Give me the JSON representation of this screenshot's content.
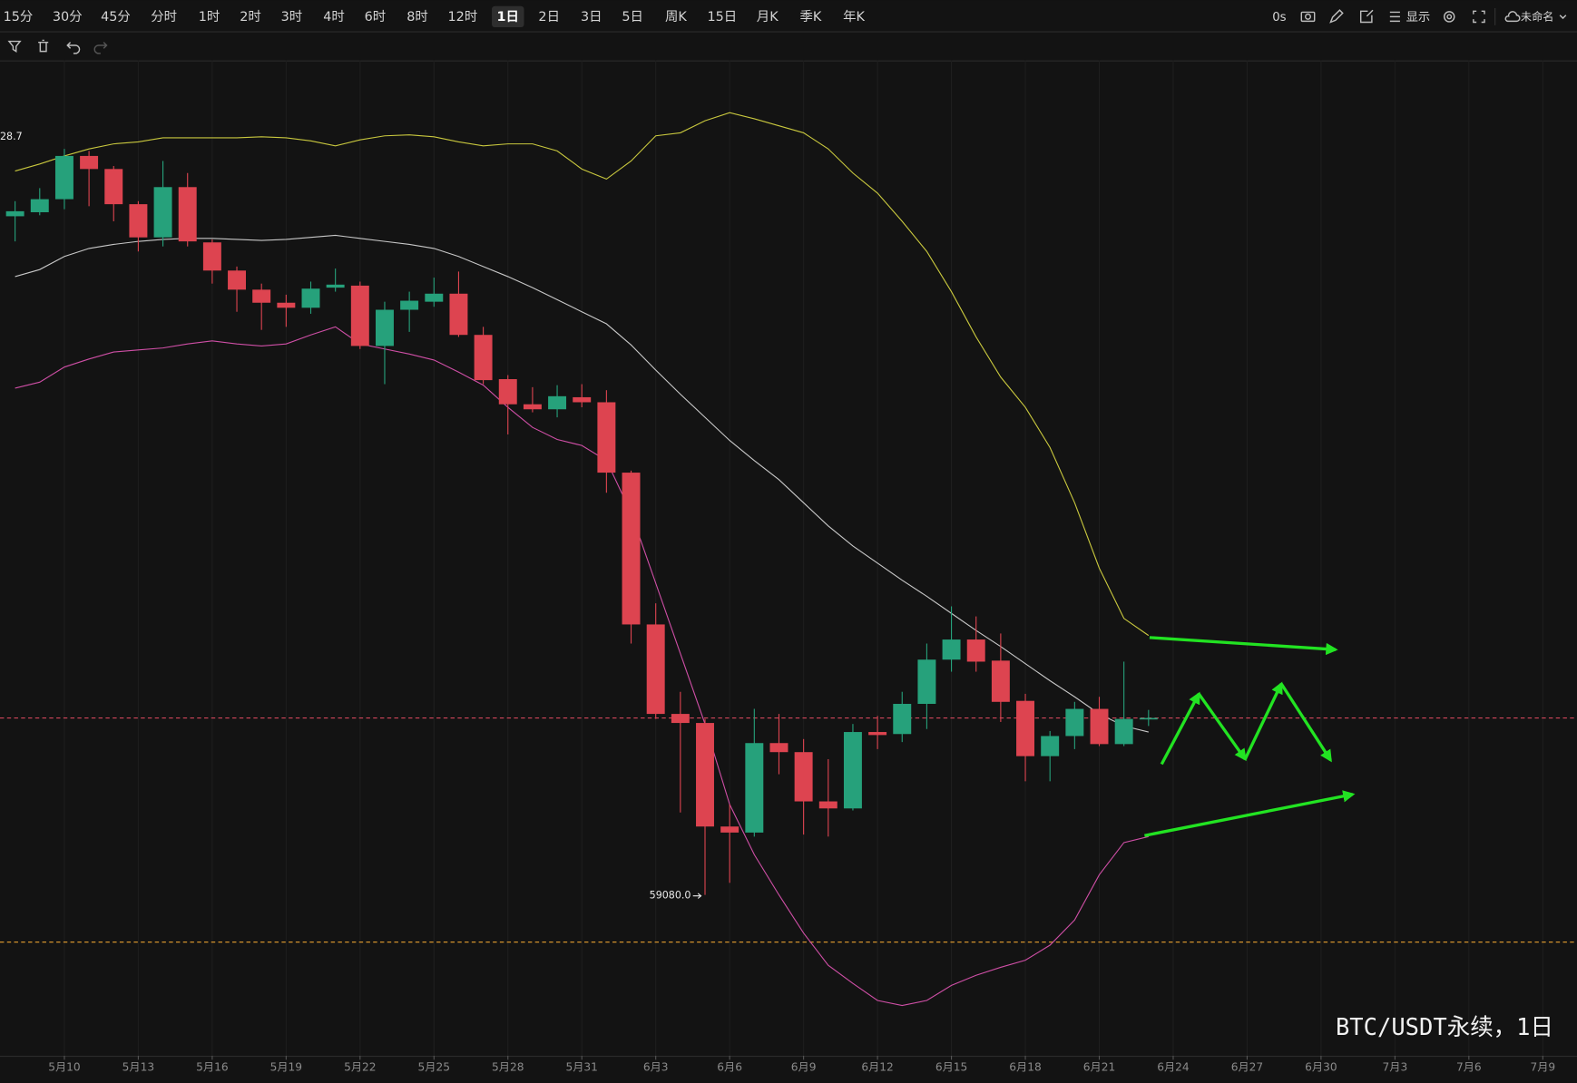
{
  "toolbar": {
    "intervals": [
      "15分",
      "30分",
      "45分",
      "分时",
      "1时",
      "2时",
      "3时",
      "4时",
      "6时",
      "8时",
      "12时",
      "1日",
      "2日",
      "3日",
      "5日",
      "周K",
      "15日",
      "月K",
      "季K",
      "年K"
    ],
    "active_index": 11,
    "right": [
      "0s",
      "显示",
      "未命名"
    ]
  },
  "chart_data": {
    "type": "candlestick",
    "categories": [
      null,
      null,
      "5月10",
      null,
      null,
      "5月13",
      null,
      null,
      "5月16",
      null,
      null,
      "5月19",
      null,
      null,
      "5月22",
      null,
      null,
      "5月25",
      null,
      null,
      "5月28",
      null,
      null,
      "5月31",
      null,
      null,
      "6月3",
      null,
      null,
      "6月6",
      null,
      null,
      "6月9",
      null,
      null,
      "6月12",
      null,
      null,
      "6月15",
      null,
      null,
      "6月18",
      null,
      null,
      "6月21",
      null,
      null,
      "6月24",
      null,
      null,
      "6月27",
      null,
      null,
      "6月30",
      null,
      null,
      "7月3",
      null,
      null,
      "7月6",
      null,
      null,
      "7月9"
    ],
    "open": [
      72580,
      72660,
      72920,
      73780,
      73520,
      72820,
      72160,
      73160,
      72060,
      71500,
      71120,
      70860,
      70760,
      71160,
      71200,
      70000,
      70720,
      70880,
      71040,
      70220,
      69340,
      68840,
      68740,
      68980,
      68880,
      67480,
      64460,
      62680,
      62500,
      60440,
      60320,
      62100,
      61920,
      60940,
      60800,
      62320,
      62280,
      62880,
      63760,
      64160,
      63740,
      62940,
      61840,
      62240,
      62780,
      62080,
      62600,
      null,
      null,
      null,
      null,
      null,
      null,
      null,
      null,
      null,
      null,
      null,
      null,
      null,
      null,
      null,
      null
    ],
    "high": [
      72880,
      73140,
      73920,
      73880,
      73580,
      72880,
      73680,
      73440,
      72120,
      71580,
      71240,
      71020,
      71280,
      71540,
      71280,
      70880,
      71080,
      71360,
      71480,
      70380,
      69420,
      69180,
      69220,
      69240,
      69120,
      67520,
      64880,
      63120,
      62580,
      60880,
      62780,
      62680,
      62180,
      61780,
      62480,
      62640,
      63120,
      64080,
      64820,
      64620,
      64280,
      63080,
      62340,
      62920,
      63020,
      63720,
      62760,
      null,
      null,
      null,
      null,
      null,
      null,
      null,
      null,
      null,
      null,
      null,
      null,
      null,
      null,
      null,
      null
    ],
    "low": [
      72080,
      72600,
      72720,
      72780,
      72480,
      71880,
      71980,
      71980,
      71240,
      70680,
      70320,
      70380,
      70640,
      71080,
      69940,
      69240,
      70280,
      70780,
      70180,
      69240,
      68240,
      68680,
      68580,
      68780,
      67080,
      64080,
      62580,
      60720,
      59080,
      59320,
      60240,
      61480,
      60280,
      60240,
      60760,
      61980,
      62120,
      62380,
      63520,
      63520,
      62520,
      61340,
      61340,
      61980,
      62040,
      62040,
      62440,
      null,
      null,
      null,
      null,
      null,
      null,
      null,
      null,
      null,
      null,
      null,
      null,
      null,
      null,
      null,
      null
    ],
    "close": [
      72680,
      72920,
      73780,
      73520,
      72820,
      72160,
      73160,
      72080,
      71500,
      71120,
      70860,
      70760,
      71140,
      71220,
      70000,
      70720,
      70900,
      71040,
      70220,
      69320,
      68840,
      68740,
      69000,
      68880,
      67480,
      64460,
      62680,
      62500,
      60440,
      60320,
      62100,
      61920,
      60940,
      60800,
      62320,
      62260,
      62880,
      63760,
      64160,
      63720,
      62920,
      61840,
      62240,
      62780,
      62080,
      62580,
      62600,
      null,
      null,
      null,
      null,
      null,
      null,
      null,
      null,
      null,
      null,
      null,
      null,
      null,
      null,
      null,
      null
    ],
    "up_color": "#26a17b",
    "down_color": "#dd4450",
    "bands": [
      {
        "color": "#c9c83e",
        "values": [
          73480,
          73620,
          73780,
          73920,
          74020,
          74060,
          74140,
          74140,
          74140,
          74140,
          74160,
          74140,
          74080,
          73980,
          74100,
          74180,
          74200,
          74160,
          74060,
          73980,
          74020,
          74020,
          73880,
          73520,
          73320,
          73680,
          74180,
          74240,
          74480,
          74640,
          74520,
          74380,
          74240,
          73920,
          73440,
          73040,
          72480,
          71880,
          71080,
          70180,
          69380,
          68780,
          67980,
          66880,
          65580,
          64580,
          64240,
          null,
          null,
          null,
          null,
          null,
          null,
          null,
          null,
          null,
          null,
          null,
          null,
          null,
          null,
          null,
          null
        ]
      },
      {
        "color": "#c8c8c8",
        "values": [
          71380,
          71520,
          71780,
          71940,
          72020,
          72080,
          72120,
          72140,
          72140,
          72120,
          72100,
          72120,
          72160,
          72200,
          72140,
          72080,
          72020,
          71940,
          71780,
          71580,
          71380,
          71160,
          70920,
          70680,
          70440,
          70020,
          69520,
          69040,
          68580,
          68120,
          67720,
          67340,
          66880,
          66420,
          66020,
          65680,
          65340,
          65020,
          64680,
          64340,
          64020,
          63680,
          63340,
          63020,
          62680,
          62440,
          62320,
          null,
          null,
          null,
          null,
          null,
          null,
          null,
          null,
          null,
          null,
          null,
          null,
          null,
          null,
          null,
          null
        ]
      },
      {
        "color": "#cf4fa6",
        "values": [
          69160,
          69280,
          69580,
          69740,
          69880,
          69920,
          69960,
          70040,
          70100,
          70040,
          70000,
          70040,
          70220,
          70380,
          70040,
          69940,
          69840,
          69720,
          69480,
          69220,
          68780,
          68380,
          68140,
          68020,
          67720,
          66680,
          65280,
          63880,
          62480,
          60880,
          59880,
          59080,
          58320,
          57680,
          57320,
          56980,
          56880,
          56980,
          57280,
          57480,
          57640,
          57780,
          58080,
          58580,
          59480,
          60120,
          60240,
          null,
          null,
          null,
          null,
          null,
          null,
          null,
          null,
          null,
          null,
          null,
          null,
          null,
          null,
          null,
          null
        ]
      }
    ],
    "price_lines": [
      {
        "value": 62600,
        "color": "#d0465a"
      },
      {
        "value": 58140,
        "color": "#e8a030"
      }
    ],
    "low_marker": {
      "value": 59080,
      "label": "59080.0"
    },
    "high_marker_label": "28.7",
    "watermark": "BTC/USDT永续，1日",
    "ylim": [
      55880,
      75680
    ]
  }
}
